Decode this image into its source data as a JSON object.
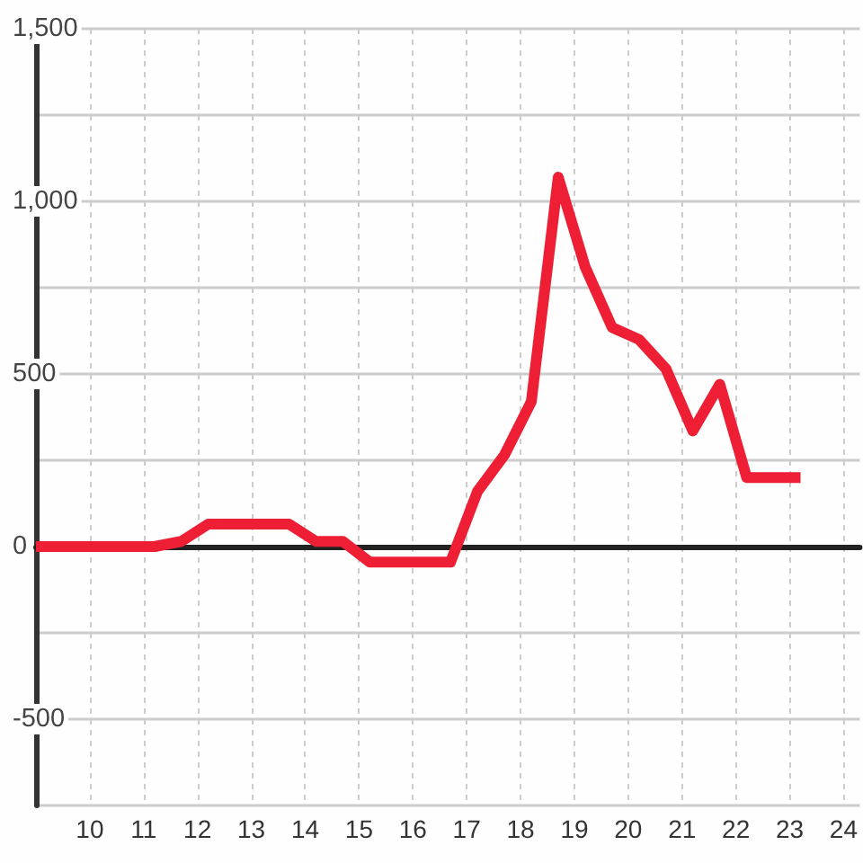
{
  "chart_data": {
    "type": "line",
    "x": [
      9,
      11.2,
      11.7,
      12.2,
      13.7,
      14.2,
      14.7,
      15.2,
      16.7,
      17.2,
      17.7,
      18.2,
      18.7,
      19.2,
      19.7,
      20.2,
      20.7,
      21.2,
      21.7,
      22.2,
      23.2
    ],
    "values": [
      0,
      0,
      15,
      65,
      65,
      15,
      15,
      -45,
      -45,
      160,
      265,
      420,
      1070,
      810,
      635,
      600,
      515,
      335,
      470,
      200,
      200
    ],
    "color": "#ee1f35",
    "xlim": [
      9,
      24.3
    ],
    "xticks": [
      10,
      11,
      12,
      13,
      14,
      15,
      16,
      17,
      18,
      19,
      20,
      21,
      22,
      23,
      24
    ],
    "ylim": [
      -750,
      1500
    ],
    "yticks": [
      {
        "value": -750,
        "label": null
      },
      -500,
      {
        "value": -250,
        "label": null
      },
      0,
      {
        "value": 250,
        "label": null
      },
      500,
      {
        "value": 750,
        "label": null
      },
      {
        "value": 1000,
        "label": "1,000"
      },
      {
        "value": 1250,
        "label": null
      },
      {
        "value": 1500,
        "label": "1,500"
      }
    ],
    "grid": true,
    "marker": "none",
    "line_style": "solid"
  }
}
